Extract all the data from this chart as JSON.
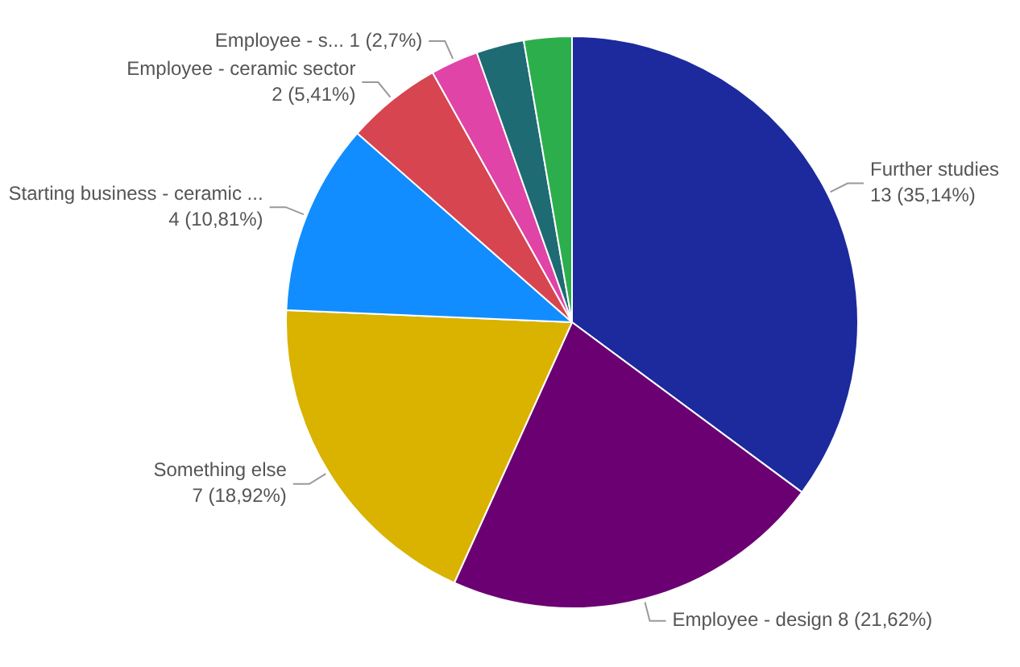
{
  "chart_data": {
    "type": "pie",
    "categories": [
      "Further studies",
      "Employee - design",
      "Something else",
      "Starting business - ceramic ...",
      "Employee - ceramic sector",
      "Employee - s...",
      null,
      null
    ],
    "values": [
      13,
      8,
      7,
      4,
      2,
      1,
      1,
      1
    ],
    "colors": [
      "#1c2a9e",
      "#6b0073",
      "#d9b300",
      "#118dff",
      "#d64550",
      "#e044a7",
      "#1e6b73",
      "#2dae4c"
    ],
    "value_labels": [
      "13 (35,14%)",
      "8 (21,62%)",
      "7 (18,92%)",
      "4 (10,81%)",
      "2 (5,41%)",
      "1 (2,7%)",
      null,
      null
    ],
    "legend": false
  }
}
